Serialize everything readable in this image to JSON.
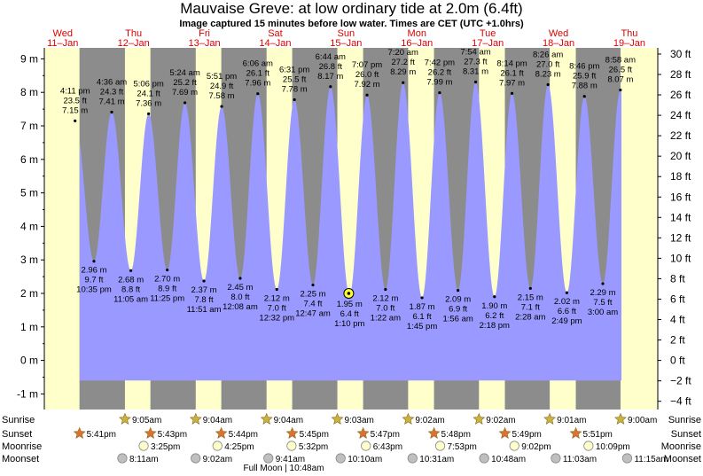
{
  "title": "Mauvaise Greve: at low  ordinary tide at 2.0m (6.4ft)",
  "subtitle": "Image captured 15 minutes before low water. Times are CET (UTC +1.0hrs)",
  "days": [
    {
      "weekday": "Wed",
      "date": "11–Jan"
    },
    {
      "weekday": "Thu",
      "date": "12–Jan"
    },
    {
      "weekday": "Fri",
      "date": "13–Jan"
    },
    {
      "weekday": "Sat",
      "date": "14–Jan"
    },
    {
      "weekday": "Sun",
      "date": "15–Jan"
    },
    {
      "weekday": "Mon",
      "date": "16–Jan"
    },
    {
      "weekday": "Tue",
      "date": "17–Jan"
    },
    {
      "weekday": "Wed",
      "date": "18–Jan"
    },
    {
      "weekday": "Thu",
      "date": "19–Jan"
    }
  ],
  "left_axis_labels": [
    "-1 m",
    "0 m",
    "1 m",
    "2 m",
    "3 m",
    "4 m",
    "5 m",
    "6 m",
    "7 m",
    "8 m",
    "9 m"
  ],
  "right_axis_labels": [
    "−4 ft",
    "−2 ft",
    "0 ft",
    "2 ft",
    "4 ft",
    "6 ft",
    "8 ft",
    "10 ft",
    "12 ft",
    "14 ft",
    "16 ft",
    "18 ft",
    "20 ft",
    "22 ft",
    "24 ft",
    "26 ft",
    "28 ft",
    "30 ft"
  ],
  "chart_data": {
    "type": "area",
    "title": "Mauvaise Greve: at low  ordinary tide at 2.0m (6.4ft)",
    "ylabel_left_unit": "m",
    "ylabel_right_unit": "ft",
    "ylim": [
      -1.5,
      9.4
    ],
    "series": [
      {
        "name": "tide",
        "points": [
          {
            "day": 0,
            "time": "4:11 pm",
            "m": 7.15,
            "ft": "23.5 ft",
            "type": "high"
          },
          {
            "day": 0,
            "time": "10:35 pm",
            "m": 2.96,
            "ft": "9.7 ft",
            "type": "low"
          },
          {
            "day": 1,
            "time": "4:36 am",
            "m": 7.41,
            "ft": "24.3 ft",
            "type": "high"
          },
          {
            "day": 1,
            "time": "11:05 am",
            "m": 2.68,
            "ft": "8.8 ft",
            "type": "low"
          },
          {
            "day": 1,
            "time": "5:06 pm",
            "m": 7.36,
            "ft": "24.1 ft",
            "type": "high"
          },
          {
            "day": 1,
            "time": "11:25 pm",
            "m": 2.7,
            "ft": "8.9 ft",
            "type": "low"
          },
          {
            "day": 2,
            "time": "5:24 am",
            "m": 7.69,
            "ft": "25.2 ft",
            "type": "high"
          },
          {
            "day": 2,
            "time": "11:51 am",
            "m": 2.37,
            "ft": "7.8 ft",
            "type": "low"
          },
          {
            "day": 2,
            "time": "5:51 pm",
            "m": 7.58,
            "ft": "24.9 ft",
            "type": "high"
          },
          {
            "day": 3,
            "time": "12:08 am",
            "m": 2.45,
            "ft": "8.0 ft",
            "type": "low"
          },
          {
            "day": 3,
            "time": "6:06 am",
            "m": 7.96,
            "ft": "26.1 ft",
            "type": "high"
          },
          {
            "day": 3,
            "time": "12:32 pm",
            "m": 2.12,
            "ft": "7.0 ft",
            "type": "low"
          },
          {
            "day": 3,
            "time": "6:31 pm",
            "m": 7.78,
            "ft": "25.5 ft",
            "type": "high"
          },
          {
            "day": 4,
            "time": "12:47 am",
            "m": 2.25,
            "ft": "7.4 ft",
            "type": "low"
          },
          {
            "day": 4,
            "time": "6:44 am",
            "m": 8.17,
            "ft": "26.8 ft",
            "type": "high"
          },
          {
            "day": 4,
            "time": "1:10 pm",
            "m": 1.95,
            "ft": "6.4 ft",
            "type": "low"
          },
          {
            "day": 4,
            "time": "7:07 pm",
            "m": 7.92,
            "ft": "26.0 ft",
            "type": "high"
          },
          {
            "day": 5,
            "time": "1:22 am",
            "m": 2.12,
            "ft": "7.0 ft",
            "type": "low"
          },
          {
            "day": 5,
            "time": "7:20 am",
            "m": 8.29,
            "ft": "27.2 ft",
            "type": "high"
          },
          {
            "day": 5,
            "time": "1:45 pm",
            "m": 1.87,
            "ft": "6.1 ft",
            "type": "low"
          },
          {
            "day": 5,
            "time": "7:42 pm",
            "m": 7.99,
            "ft": "26.2 ft",
            "type": "high"
          },
          {
            "day": 6,
            "time": "1:56 am",
            "m": 2.09,
            "ft": "6.9 ft",
            "type": "low"
          },
          {
            "day": 6,
            "time": "7:54 am",
            "m": 8.31,
            "ft": "27.3 ft",
            "type": "high"
          },
          {
            "day": 6,
            "time": "2:18 pm",
            "m": 1.9,
            "ft": "6.2 ft",
            "type": "low"
          },
          {
            "day": 6,
            "time": "8:14 pm",
            "m": 7.97,
            "ft": "26.1 ft",
            "type": "high"
          },
          {
            "day": 7,
            "time": "2:28 am",
            "m": 2.15,
            "ft": "7.1 ft",
            "type": "low"
          },
          {
            "day": 7,
            "time": "8:26 am",
            "m": 8.23,
            "ft": "27.0 ft",
            "type": "high"
          },
          {
            "day": 7,
            "time": "2:49 pm",
            "m": 2.02,
            "ft": "6.6 ft",
            "type": "low"
          },
          {
            "day": 7,
            "time": "8:46 pm",
            "m": 7.88,
            "ft": "25.9 ft",
            "type": "high"
          },
          {
            "day": 8,
            "time": "3:00 am",
            "m": 2.29,
            "ft": "7.5 ft",
            "type": "low"
          },
          {
            "day": 8,
            "time": "8:58 am",
            "m": 8.07,
            "ft": "26.5 ft",
            "type": "high"
          }
        ]
      }
    ],
    "current_marker": {
      "day": 4,
      "time": "12:55 pm",
      "m": 2.0
    }
  },
  "events": {
    "labels": {
      "sunrise": "Sunrise",
      "sunset": "Sunset",
      "moonrise": "Moonrise",
      "moonset": "Moonset"
    },
    "sunrise": [
      {
        "day": 1,
        "time": "9:05am"
      },
      {
        "day": 2,
        "time": "9:04am"
      },
      {
        "day": 3,
        "time": "9:04am"
      },
      {
        "day": 4,
        "time": "9:03am"
      },
      {
        "day": 5,
        "time": "9:02am"
      },
      {
        "day": 6,
        "time": "9:02am"
      },
      {
        "day": 7,
        "time": "9:01am"
      },
      {
        "day": 8,
        "time": "9:00am"
      }
    ],
    "sunset": [
      {
        "day": 0,
        "time": "5:41pm"
      },
      {
        "day": 1,
        "time": "5:43pm"
      },
      {
        "day": 2,
        "time": "5:44pm"
      },
      {
        "day": 3,
        "time": "5:45pm"
      },
      {
        "day": 4,
        "time": "5:47pm"
      },
      {
        "day": 5,
        "time": "5:48pm"
      },
      {
        "day": 6,
        "time": "5:49pm"
      },
      {
        "day": 7,
        "time": "5:51pm"
      }
    ],
    "moonrise": [
      {
        "day": 1,
        "time": "3:25pm"
      },
      {
        "day": 2,
        "time": "4:25pm"
      },
      {
        "day": 3,
        "time": "5:32pm"
      },
      {
        "day": 4,
        "time": "6:43pm"
      },
      {
        "day": 5,
        "time": "7:53pm"
      },
      {
        "day": 6,
        "time": "9:02pm"
      },
      {
        "day": 7,
        "time": "10:09pm"
      }
    ],
    "moonset": [
      {
        "day": 1,
        "time": "8:11am"
      },
      {
        "day": 2,
        "time": "9:02am"
      },
      {
        "day": 3,
        "time": "9:41am"
      },
      {
        "day": 4,
        "time": "10:10am"
      },
      {
        "day": 5,
        "time": "10:31am"
      },
      {
        "day": 6,
        "time": "10:48am"
      },
      {
        "day": 7,
        "time": "11:03am"
      },
      {
        "day": 8,
        "time": "11:15am"
      }
    ],
    "full_moon": "Full Moon | 10:48am"
  },
  "colors": {
    "night": "#8c8c8c",
    "day": "#ffffcc",
    "water": "#9999ff",
    "sunrise_star": "#c8b43c",
    "sunset_star": "#e07030",
    "moonrise": "#ffffcc",
    "moonset": "#bfbfbf",
    "day_label": "#dd0000"
  }
}
